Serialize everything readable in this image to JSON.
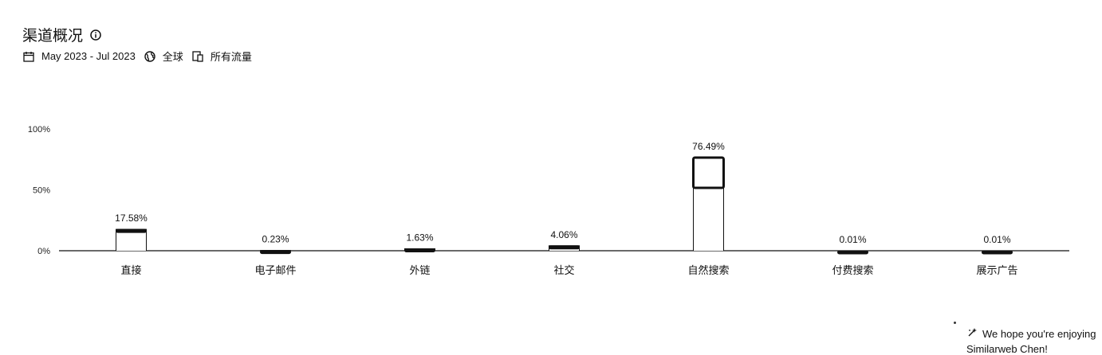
{
  "header": {
    "title": "渠道概况",
    "date_range": "May 2023 - Jul 2023",
    "region": "全球",
    "traffic_type": "所有流量"
  },
  "icons": {
    "info": "info-icon",
    "calendar": "calendar-icon",
    "globe": "globe-icon",
    "devices": "devices-icon",
    "sparkle": "sparkle-icon"
  },
  "chart_data": {
    "type": "bar",
    "categories": [
      "直接",
      "电子邮件",
      "外链",
      "社交",
      "自然搜索",
      "付费搜索",
      "展示广告"
    ],
    "values": [
      17.58,
      0.23,
      1.63,
      4.06,
      76.49,
      0.01,
      0.01
    ],
    "data_labels": [
      "17.58%",
      "0.23%",
      "1.63%",
      "4.06%",
      "76.49%",
      "0.01%",
      "0.01%"
    ],
    "yticks": [
      "0%",
      "50%",
      "100%"
    ],
    "ylim": [
      0,
      100
    ],
    "grid": false,
    "legend": "none",
    "bar_color": "#111111"
  },
  "toast": {
    "line1": "We hope you're enjoying",
    "line2": "Similarweb Chen!"
  }
}
